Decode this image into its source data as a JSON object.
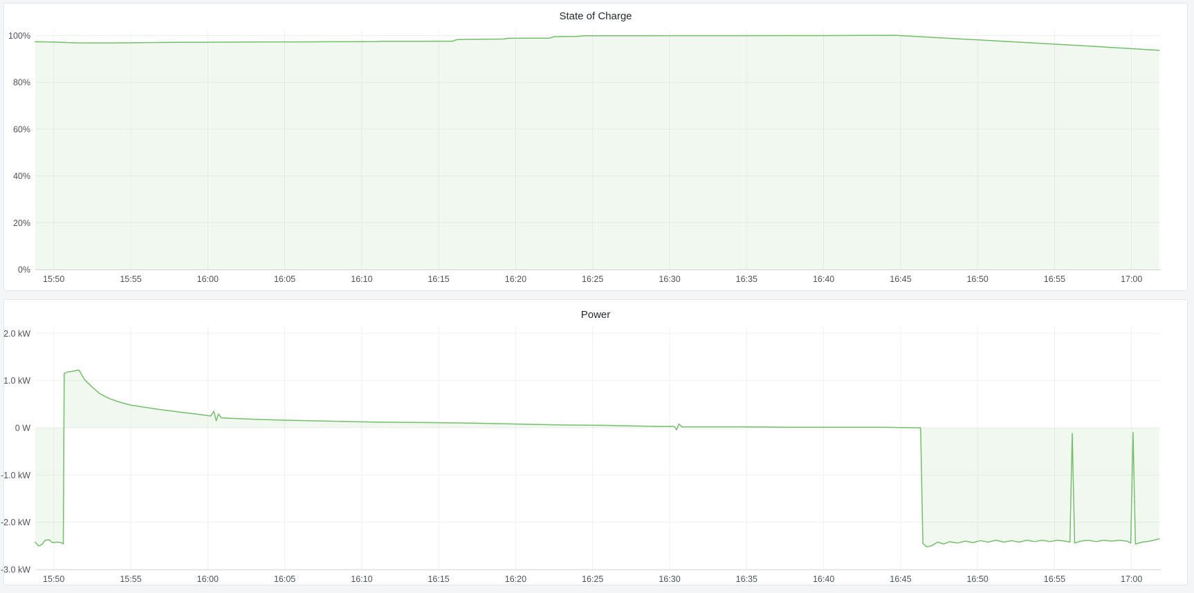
{
  "dashboard": {
    "panels": [
      {
        "title": "State of Charge"
      },
      {
        "title": "Power"
      }
    ]
  },
  "colors": {
    "series_line": "#73bf69",
    "series_fill": "rgba(115,191,105,0.10)",
    "page_background": "#f4f5f6",
    "panel_background": "#ffffff",
    "panel_border": "#e3e6e9",
    "title_text": "#24292e",
    "axis_text": "#4e5258"
  },
  "chart_data": [
    {
      "type": "area",
      "title": "State of Charge",
      "xlabel": "",
      "ylabel": "",
      "unit": "%",
      "legend": "none",
      "grid": true,
      "x_time_minutes_after_15h": true,
      "xlim": [
        48.8,
        121.9
      ],
      "ylim": [
        0,
        102.5
      ],
      "baseline": 0,
      "x_ticks": [
        {
          "t": 50,
          "label": "15:50"
        },
        {
          "t": 55,
          "label": "15:55"
        },
        {
          "t": 60,
          "label": "16:00"
        },
        {
          "t": 65,
          "label": "16:05"
        },
        {
          "t": 70,
          "label": "16:10"
        },
        {
          "t": 75,
          "label": "16:15"
        },
        {
          "t": 80,
          "label": "16:20"
        },
        {
          "t": 85,
          "label": "16:25"
        },
        {
          "t": 90,
          "label": "16:30"
        },
        {
          "t": 95,
          "label": "16:35"
        },
        {
          "t": 100,
          "label": "16:40"
        },
        {
          "t": 105,
          "label": "16:45"
        },
        {
          "t": 110,
          "label": "16:50"
        },
        {
          "t": 115,
          "label": "16:55"
        },
        {
          "t": 120,
          "label": "17:00"
        }
      ],
      "y_ticks": [
        {
          "v": 0,
          "label": "0%"
        },
        {
          "v": 20,
          "label": "20%"
        },
        {
          "v": 40,
          "label": "40%"
        },
        {
          "v": 60,
          "label": "60%"
        },
        {
          "v": 80,
          "label": "80%"
        },
        {
          "v": 100,
          "label": "100%"
        }
      ],
      "series": [
        {
          "name": "State of Charge",
          "color": "#73bf69",
          "fill": "rgba(115,191,105,0.10)",
          "points": [
            [
              48.8,
              97.35
            ],
            [
              49.5,
              97.3
            ],
            [
              50.0,
              97.2
            ],
            [
              50.8,
              97.05
            ],
            [
              51.5,
              96.9
            ],
            [
              52.5,
              96.85
            ],
            [
              53.5,
              96.85
            ],
            [
              54.5,
              96.9
            ],
            [
              56.0,
              97.0
            ],
            [
              58.0,
              97.1
            ],
            [
              60.0,
              97.15
            ],
            [
              62.0,
              97.2
            ],
            [
              64.0,
              97.3
            ],
            [
              66.0,
              97.3
            ],
            [
              68.0,
              97.35
            ],
            [
              70.0,
              97.4
            ],
            [
              71.0,
              97.45
            ],
            [
              71.3,
              97.55
            ],
            [
              74.0,
              97.55
            ],
            [
              75.3,
              97.6
            ],
            [
              75.9,
              97.6
            ],
            [
              76.2,
              98.3
            ],
            [
              77.0,
              98.4
            ],
            [
              79.2,
              98.5
            ],
            [
              79.5,
              98.85
            ],
            [
              82.2,
              98.9
            ],
            [
              82.5,
              99.55
            ],
            [
              84.0,
              99.6
            ],
            [
              84.4,
              99.9
            ],
            [
              88.0,
              99.9
            ],
            [
              90.0,
              99.95
            ],
            [
              95.0,
              99.95
            ],
            [
              100.0,
              100.0
            ],
            [
              104.6,
              100.1
            ],
            [
              105.5,
              99.8
            ],
            [
              108.0,
              98.9
            ],
            [
              111.0,
              97.8
            ],
            [
              114.0,
              96.7
            ],
            [
              117.0,
              95.6
            ],
            [
              120.0,
              94.4
            ],
            [
              121.8,
              93.7
            ]
          ]
        }
      ]
    },
    {
      "type": "area",
      "title": "Power",
      "xlabel": "",
      "ylabel": "",
      "unit": "kW",
      "legend": "none",
      "grid": true,
      "x_time_minutes_after_15h": true,
      "xlim": [
        48.8,
        121.9
      ],
      "ylim": [
        -3.0,
        2.15
      ],
      "baseline": 0,
      "x_ticks": [
        {
          "t": 50,
          "label": "15:50"
        },
        {
          "t": 55,
          "label": "15:55"
        },
        {
          "t": 60,
          "label": "16:00"
        },
        {
          "t": 65,
          "label": "16:05"
        },
        {
          "t": 70,
          "label": "16:10"
        },
        {
          "t": 75,
          "label": "16:15"
        },
        {
          "t": 80,
          "label": "16:20"
        },
        {
          "t": 85,
          "label": "16:25"
        },
        {
          "t": 90,
          "label": "16:30"
        },
        {
          "t": 95,
          "label": "16:35"
        },
        {
          "t": 100,
          "label": "16:40"
        },
        {
          "t": 105,
          "label": "16:45"
        },
        {
          "t": 110,
          "label": "16:50"
        },
        {
          "t": 115,
          "label": "16:55"
        },
        {
          "t": 120,
          "label": "17:00"
        }
      ],
      "y_ticks": [
        {
          "v": 2,
          "label": "2.0 kW"
        },
        {
          "v": 1,
          "label": "1.0 kW"
        },
        {
          "v": 0,
          "label": "0 W"
        },
        {
          "v": -1,
          "label": "-1.0 kW"
        },
        {
          "v": -2,
          "label": "-2.0 kW"
        },
        {
          "v": -3,
          "label": "-3.0 kW"
        }
      ],
      "series": [
        {
          "name": "Power",
          "color": "#73bf69",
          "fill": "rgba(115,191,105,0.10)",
          "points": [
            [
              48.8,
              -2.42
            ],
            [
              49.0,
              -2.5
            ],
            [
              49.2,
              -2.48
            ],
            [
              49.45,
              -2.38
            ],
            [
              49.7,
              -2.37
            ],
            [
              49.9,
              -2.43
            ],
            [
              50.3,
              -2.42
            ],
            [
              50.55,
              -2.44
            ],
            [
              50.62,
              -2.46
            ],
            [
              50.68,
              1.15
            ],
            [
              50.9,
              1.18
            ],
            [
              51.3,
              1.2
            ],
            [
              51.55,
              1.22
            ],
            [
              51.65,
              1.22
            ],
            [
              52.0,
              1.02
            ],
            [
              52.5,
              0.86
            ],
            [
              53.0,
              0.72
            ],
            [
              53.6,
              0.62
            ],
            [
              54.3,
              0.54
            ],
            [
              55.0,
              0.48
            ],
            [
              55.8,
              0.44
            ],
            [
              56.6,
              0.4
            ],
            [
              57.5,
              0.36
            ],
            [
              58.5,
              0.32
            ],
            [
              59.5,
              0.28
            ],
            [
              60.2,
              0.25
            ],
            [
              60.4,
              0.35
            ],
            [
              60.55,
              0.15
            ],
            [
              60.7,
              0.29
            ],
            [
              60.9,
              0.21
            ],
            [
              61.5,
              0.2
            ],
            [
              63.0,
              0.18
            ],
            [
              65.0,
              0.16
            ],
            [
              68.0,
              0.14
            ],
            [
              71.0,
              0.12
            ],
            [
              74.0,
              0.11
            ],
            [
              77.0,
              0.1
            ],
            [
              80.0,
              0.08
            ],
            [
              83.0,
              0.06
            ],
            [
              86.0,
              0.05
            ],
            [
              89.0,
              0.03
            ],
            [
              90.3,
              0.03
            ],
            [
              90.45,
              -0.04
            ],
            [
              90.6,
              0.08
            ],
            [
              90.8,
              0.02
            ],
            [
              92.0,
              0.02
            ],
            [
              95.0,
              0.02
            ],
            [
              98.0,
              0.01
            ],
            [
              101.0,
              0.01
            ],
            [
              104.0,
              0.01
            ],
            [
              106.0,
              0.0
            ],
            [
              106.3,
              0.0
            ],
            [
              106.45,
              -2.45
            ],
            [
              106.7,
              -2.52
            ],
            [
              107.0,
              -2.5
            ],
            [
              107.4,
              -2.42
            ],
            [
              107.8,
              -2.46
            ],
            [
              108.2,
              -2.41
            ],
            [
              108.7,
              -2.44
            ],
            [
              109.2,
              -2.4
            ],
            [
              109.7,
              -2.43
            ],
            [
              110.2,
              -2.39
            ],
            [
              110.7,
              -2.42
            ],
            [
              111.2,
              -2.38
            ],
            [
              111.7,
              -2.42
            ],
            [
              112.2,
              -2.39
            ],
            [
              112.7,
              -2.42
            ],
            [
              113.2,
              -2.38
            ],
            [
              113.7,
              -2.41
            ],
            [
              114.2,
              -2.38
            ],
            [
              114.7,
              -2.41
            ],
            [
              115.2,
              -2.38
            ],
            [
              115.7,
              -2.4
            ],
            [
              116.0,
              -2.42
            ],
            [
              116.15,
              -0.12
            ],
            [
              116.3,
              -2.44
            ],
            [
              116.7,
              -2.4
            ],
            [
              117.2,
              -2.38
            ],
            [
              117.7,
              -2.41
            ],
            [
              118.2,
              -2.38
            ],
            [
              118.7,
              -2.4
            ],
            [
              119.2,
              -2.38
            ],
            [
              119.7,
              -2.4
            ],
            [
              119.95,
              -2.44
            ],
            [
              120.1,
              -0.1
            ],
            [
              120.25,
              -2.46
            ],
            [
              120.7,
              -2.42
            ],
            [
              121.2,
              -2.4
            ],
            [
              121.8,
              -2.35
            ]
          ]
        }
      ]
    }
  ]
}
